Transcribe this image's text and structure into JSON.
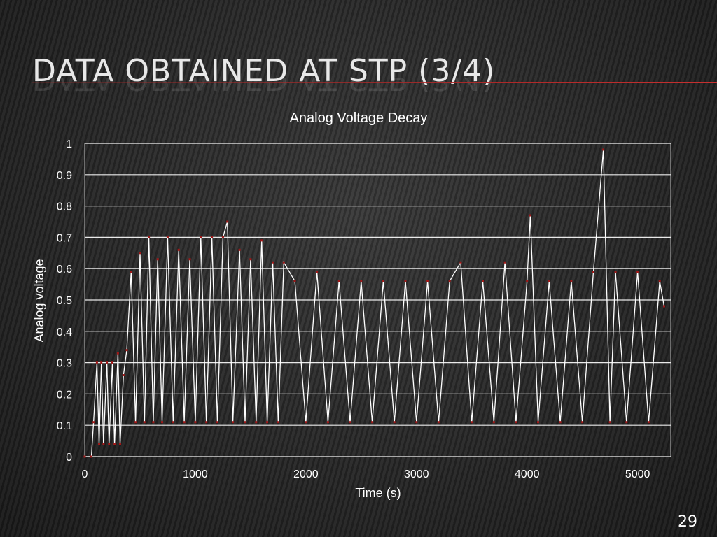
{
  "slide": {
    "title": "Data Obtained at STP (3/4)",
    "page_number": "29"
  },
  "colors": {
    "background": "#2b2b2b",
    "accent_rule": "#b02828",
    "line": "#ffffff",
    "markers": "#a01818",
    "grid": "#ffffff"
  },
  "chart_data": {
    "type": "line",
    "title": "Analog Voltage Decay",
    "xlabel": "Time (s)",
    "ylabel": "Analog voltage",
    "xlim": [
      0,
      5300
    ],
    "ylim": [
      0,
      1
    ],
    "x_ticks": [
      "0",
      "1000",
      "2000",
      "3000",
      "4000",
      "5000"
    ],
    "y_ticks": [
      "0",
      "0.1",
      "0.2",
      "0.3",
      "0.4",
      "0.5",
      "0.6",
      "0.7",
      "0.8",
      "0.9",
      "1"
    ],
    "grid": "horizontal",
    "legend": "none",
    "series": [
      {
        "style": "line with square markers",
        "x": [
          0,
          60,
          80,
          110,
          130,
          150,
          170,
          200,
          220,
          250,
          270,
          300,
          320,
          350,
          380,
          420,
          460,
          500,
          540,
          580,
          620,
          660,
          700,
          750,
          800,
          850,
          900,
          950,
          1000,
          1050,
          1100,
          1150,
          1200,
          1250,
          1290,
          1340,
          1400,
          1450,
          1500,
          1550,
          1600,
          1650,
          1700,
          1750,
          1800,
          1900,
          2000,
          2100,
          2200,
          2300,
          2400,
          2500,
          2600,
          2700,
          2800,
          2900,
          3000,
          3100,
          3200,
          3300,
          3400,
          3500,
          3600,
          3700,
          3800,
          3900,
          4000,
          4030,
          4100,
          4200,
          4300,
          4400,
          4500,
          4600,
          4690,
          4750,
          4800,
          4900,
          5000,
          5100,
          5200,
          5240
        ],
        "y": [
          0.0,
          0.0,
          0.11,
          0.3,
          0.04,
          0.3,
          0.04,
          0.3,
          0.04,
          0.3,
          0.04,
          0.33,
          0.04,
          0.26,
          0.34,
          0.59,
          0.11,
          0.65,
          0.11,
          0.7,
          0.11,
          0.63,
          0.11,
          0.7,
          0.11,
          0.66,
          0.11,
          0.63,
          0.11,
          0.7,
          0.11,
          0.7,
          0.11,
          0.7,
          0.75,
          0.11,
          0.66,
          0.11,
          0.63,
          0.11,
          0.69,
          0.11,
          0.62,
          0.11,
          0.62,
          0.56,
          0.11,
          0.59,
          0.11,
          0.56,
          0.11,
          0.56,
          0.11,
          0.56,
          0.11,
          0.56,
          0.11,
          0.56,
          0.11,
          0.56,
          0.62,
          0.11,
          0.56,
          0.11,
          0.62,
          0.11,
          0.56,
          0.77,
          0.11,
          0.56,
          0.11,
          0.56,
          0.11,
          0.59,
          0.98,
          0.11,
          0.59,
          0.11,
          0.59,
          0.11,
          0.56,
          0.48
        ]
      }
    ]
  }
}
